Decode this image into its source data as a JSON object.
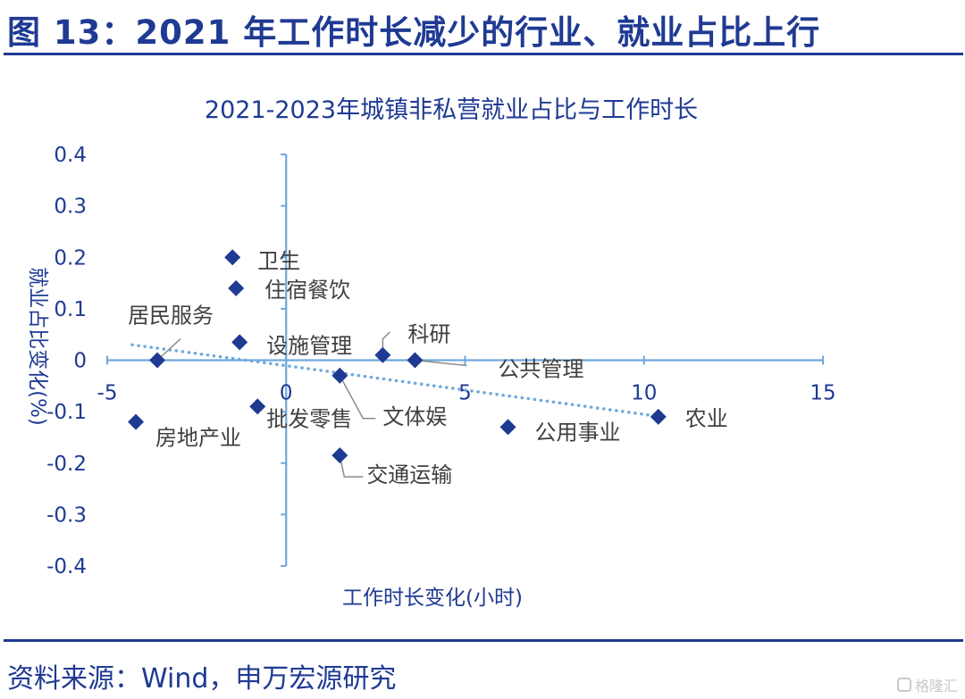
{
  "figure_title": "图 13：2021 年工作时长减少的行业、就业占比上行",
  "source_note": "资料来源：Wind，申万宏源研究",
  "watermark": "格隆汇",
  "colors": {
    "title": "#1f3a93",
    "chart_text": "#1f3a93",
    "axis": "#6fa8dc",
    "marker": "#1f3a93",
    "trendline": "#6fa8dc",
    "label": "#404040",
    "leader": "#8c8c8c"
  },
  "chart_data": {
    "type": "scatter",
    "title": "2021-2023年城镇非私营就业占比与工作时长",
    "xlabel": "工作时长变化(小时)",
    "ylabel": "就业占比变化(%)",
    "xlim": [
      -5,
      15
    ],
    "ylim": [
      -0.4,
      0.4
    ],
    "xticks": [
      "-5",
      "0",
      "5",
      "10",
      "15"
    ],
    "yticks": [
      "0.4",
      "0.3",
      "0.2",
      "0.1",
      "0",
      "-0.1",
      "-0.2",
      "-0.3",
      "-0.4"
    ],
    "grid": false,
    "legend": "none",
    "trendline": {
      "style": "dotted",
      "x": [
        -4.3,
        10.5
      ],
      "y": [
        0.03,
        -0.11
      ]
    },
    "points": [
      {
        "label": "卫生",
        "x": -1.5,
        "y": 0.2
      },
      {
        "label": "住宿餐饮",
        "x": -1.4,
        "y": 0.14
      },
      {
        "label": "居民服务",
        "x": -3.6,
        "y": 0.0
      },
      {
        "label": "设施管理",
        "x": -1.3,
        "y": 0.035
      },
      {
        "label": "科研",
        "x": 2.7,
        "y": 0.01
      },
      {
        "label": "公共管理",
        "x": 3.6,
        "y": 0.0
      },
      {
        "label": "农业",
        "x": 10.4,
        "y": -0.11
      },
      {
        "label": "房地产业",
        "x": -4.2,
        "y": -0.12
      },
      {
        "label": "批发零售",
        "x": -0.8,
        "y": -0.09
      },
      {
        "label": "文体娱",
        "x": 1.5,
        "y": -0.03
      },
      {
        "label": "公用事业",
        "x": 6.2,
        "y": -0.13
      },
      {
        "label": "交通运输",
        "x": 1.5,
        "y": -0.185
      }
    ]
  }
}
